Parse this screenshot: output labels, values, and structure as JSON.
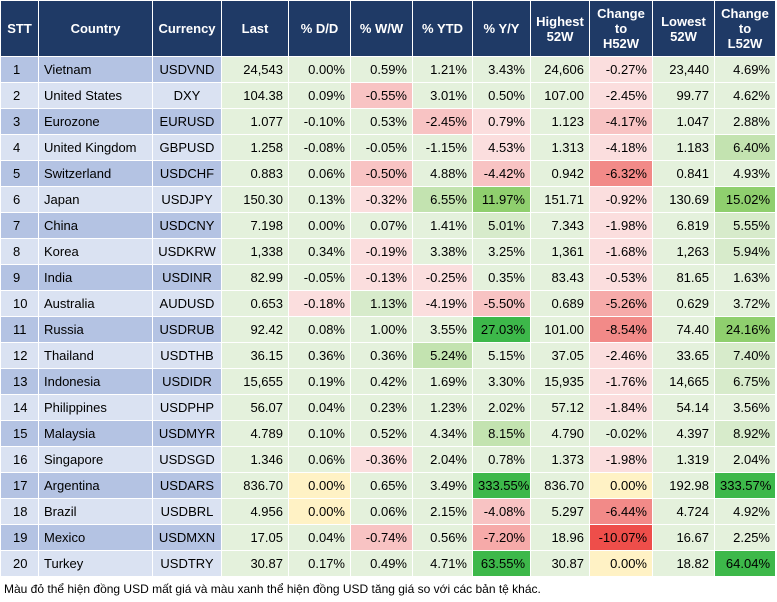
{
  "headers": [
    "STT",
    "Country",
    "Currency",
    "Last",
    "% D/D",
    "% W/W",
    "% YTD",
    "% Y/Y",
    "Highest\n52W",
    "Change\nto\nH52W",
    "Lowest\n52W",
    "Change\nto\nL52W"
  ],
  "rows": [
    [
      "1",
      "Vietnam",
      "USDVND",
      "24,543",
      "0.00%",
      "0.59%",
      "1.21%",
      "3.43%",
      "24,606",
      "-0.27%",
      "23,440",
      "4.69%"
    ],
    [
      "2",
      "United States",
      "DXY",
      "104.38",
      "0.09%",
      "-0.55%",
      "3.01%",
      "0.50%",
      "107.00",
      "-2.45%",
      "99.77",
      "4.62%"
    ],
    [
      "3",
      "Eurozone",
      "EURUSD",
      "1.077",
      "-0.10%",
      "0.53%",
      "-2.45%",
      "0.79%",
      "1.123",
      "-4.17%",
      "1.047",
      "2.88%"
    ],
    [
      "4",
      "United Kingdom",
      "GBPUSD",
      "1.258",
      "-0.08%",
      "-0.05%",
      "-1.15%",
      "4.53%",
      "1.313",
      "-4.18%",
      "1.183",
      "6.40%"
    ],
    [
      "5",
      "Switzerland",
      "USDCHF",
      "0.883",
      "0.06%",
      "-0.50%",
      "4.88%",
      "-4.42%",
      "0.942",
      "-6.32%",
      "0.841",
      "4.93%"
    ],
    [
      "6",
      "Japan",
      "USDJPY",
      "150.30",
      "0.13%",
      "-0.32%",
      "6.55%",
      "11.97%",
      "151.71",
      "-0.92%",
      "130.69",
      "15.02%"
    ],
    [
      "7",
      "China",
      "USDCNY",
      "7.198",
      "0.00%",
      "0.07%",
      "1.41%",
      "5.01%",
      "7.343",
      "-1.98%",
      "6.819",
      "5.55%"
    ],
    [
      "8",
      "Korea",
      "USDKRW",
      "1,338",
      "0.34%",
      "-0.19%",
      "3.38%",
      "3.25%",
      "1,361",
      "-1.68%",
      "1,263",
      "5.94%"
    ],
    [
      "9",
      "India",
      "USDINR",
      "82.99",
      "-0.05%",
      "-0.13%",
      "-0.25%",
      "0.35%",
      "83.43",
      "-0.53%",
      "81.65",
      "1.63%"
    ],
    [
      "10",
      "Australia",
      "AUDUSD",
      "0.653",
      "-0.18%",
      "1.13%",
      "-4.19%",
      "-5.50%",
      "0.689",
      "-5.26%",
      "0.629",
      "3.72%"
    ],
    [
      "11",
      "Russia",
      "USDRUB",
      "92.42",
      "0.08%",
      "1.00%",
      "3.55%",
      "27.03%",
      "101.00",
      "-8.54%",
      "74.40",
      "24.16%"
    ],
    [
      "12",
      "Thailand",
      "USDTHB",
      "36.15",
      "0.36%",
      "0.36%",
      "5.24%",
      "5.15%",
      "37.05",
      "-2.46%",
      "33.65",
      "7.40%"
    ],
    [
      "13",
      "Indonesia",
      "USDIDR",
      "15,655",
      "0.19%",
      "0.42%",
      "1.69%",
      "3.30%",
      "15,935",
      "-1.76%",
      "14,665",
      "6.75%"
    ],
    [
      "14",
      "Philippines",
      "USDPHP",
      "56.07",
      "0.04%",
      "0.23%",
      "1.23%",
      "2.02%",
      "57.12",
      "-1.84%",
      "54.14",
      "3.56%"
    ],
    [
      "15",
      "Malaysia",
      "USDMYR",
      "4.789",
      "0.10%",
      "0.52%",
      "4.34%",
      "8.15%",
      "4.790",
      "-0.02%",
      "4.397",
      "8.92%"
    ],
    [
      "16",
      "Singapore",
      "USDSGD",
      "1.346",
      "0.06%",
      "-0.36%",
      "2.04%",
      "0.78%",
      "1.373",
      "-1.98%",
      "1.319",
      "2.04%"
    ],
    [
      "17",
      "Argentina",
      "USDARS",
      "836.70",
      "0.00%",
      "0.65%",
      "3.49%",
      "333.55%",
      "836.70",
      "0.00%",
      "192.98",
      "333.57%"
    ],
    [
      "18",
      "Brazil",
      "USDBRL",
      "4.956",
      "0.00%",
      "0.06%",
      "2.15%",
      "-4.08%",
      "5.297",
      "-6.44%",
      "4.724",
      "4.92%"
    ],
    [
      "19",
      "Mexico",
      "USDMXN",
      "17.05",
      "0.04%",
      "-0.74%",
      "0.56%",
      "-7.20%",
      "18.96",
      "-10.07%",
      "16.67",
      "2.25%"
    ],
    [
      "20",
      "Turkey",
      "USDTRY",
      "30.87",
      "0.17%",
      "0.49%",
      "4.71%",
      "63.55%",
      "30.87",
      "0.00%",
      "18.82",
      "64.04%"
    ]
  ],
  "cell_colors": [
    [
      "g1",
      "g1",
      "g1",
      "g1",
      "g1",
      "r1",
      "g1",
      "g1"
    ],
    [
      "g1",
      "r2",
      "g1",
      "g1",
      "g1",
      "r1",
      "g1",
      "g1"
    ],
    [
      "g1",
      "g1",
      "r2",
      "r1",
      "g1",
      "r2",
      "g1",
      "g1"
    ],
    [
      "g1",
      "g1",
      "g1",
      "r1",
      "g1",
      "r1",
      "g1",
      "g3"
    ],
    [
      "g1",
      "r2",
      "g1",
      "r2",
      "g1",
      "r4",
      "g1",
      "g1"
    ],
    [
      "g1",
      "r1",
      "g3",
      "g5",
      "g1",
      "r1",
      "g1",
      "g5"
    ],
    [
      "g1",
      "g1",
      "g1",
      "g2",
      "g1",
      "r1",
      "g1",
      "g2"
    ],
    [
      "g1",
      "r1",
      "g1",
      "g1",
      "g1",
      "r1",
      "g1",
      "g2"
    ],
    [
      "g1",
      "r1",
      "r1",
      "g1",
      "g1",
      "r1",
      "g1",
      "g1"
    ],
    [
      "r1",
      "g2",
      "r1",
      "r2",
      "g1",
      "r3",
      "g1",
      "g1"
    ],
    [
      "g1",
      "g1",
      "g1",
      "g6",
      "g1",
      "r4",
      "g1",
      "g5"
    ],
    [
      "g1",
      "g1",
      "g3",
      "g1",
      "g1",
      "r1",
      "g1",
      "g2"
    ],
    [
      "g1",
      "g1",
      "g1",
      "g1",
      "g1",
      "r1",
      "g1",
      "g2"
    ],
    [
      "g1",
      "g1",
      "g1",
      "g1",
      "g1",
      "r1",
      "g1",
      "g1"
    ],
    [
      "g1",
      "g1",
      "g1",
      "g3",
      "g1",
      "g1",
      "g1",
      "g2"
    ],
    [
      "g1",
      "r1",
      "g1",
      "g1",
      "g1",
      "r1",
      "g1",
      "g1"
    ],
    [
      "y",
      "g1",
      "g1",
      "g6",
      "g1",
      "y",
      "g1",
      "g6"
    ],
    [
      "y",
      "g1",
      "g1",
      "r2",
      "g1",
      "r4",
      "g1",
      "g1"
    ],
    [
      "g1",
      "r2",
      "g1",
      "r3",
      "g1",
      "r5",
      "g1",
      "g1"
    ],
    [
      "g1",
      "g1",
      "g1",
      "g6",
      "g1",
      "y",
      "g1",
      "g6"
    ]
  ],
  "footnote": "Màu đỏ thể hiện đồng USD mất giá và màu xanh thể hiện đồng USD tăng giá so với các bản tệ khác."
}
